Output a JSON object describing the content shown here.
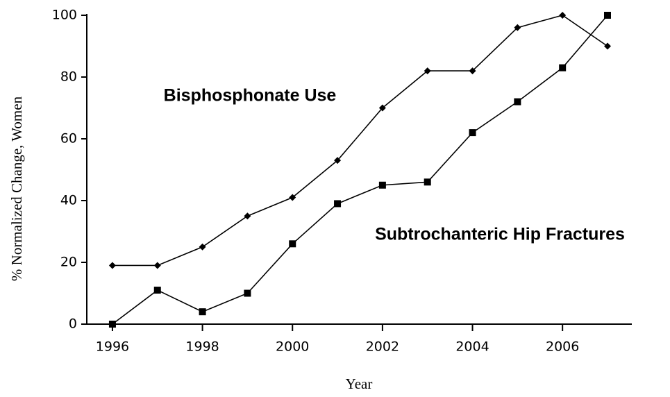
{
  "chart_data": {
    "type": "line",
    "x": [
      1996,
      1997,
      1998,
      1999,
      2000,
      2001,
      2002,
      2003,
      2004,
      2005,
      2006,
      2007
    ],
    "series": [
      {
        "name": "Bisphosphonate Use",
        "color": "#000000",
        "marker": "diamond",
        "values": [
          19,
          19,
          25,
          35,
          41,
          53,
          70,
          82,
          82,
          96,
          100,
          90
        ]
      },
      {
        "name": "Subtrochanteric Hip Fractures",
        "color": "#000000",
        "marker": "square",
        "values": [
          0,
          11,
          4,
          10,
          26,
          39,
          45,
          46,
          62,
          72,
          83,
          100
        ]
      }
    ],
    "xlabel": "Year",
    "ylabel": "% Normalized Change, Women",
    "xlim": [
      1995.43,
      2007.54
    ],
    "xticks": [
      1996,
      1998,
      2000,
      2002,
      2004,
      2006
    ],
    "ylim": [
      0,
      100
    ],
    "yticks": [
      0,
      20,
      40,
      60,
      80,
      100
    ],
    "grid": false
  }
}
